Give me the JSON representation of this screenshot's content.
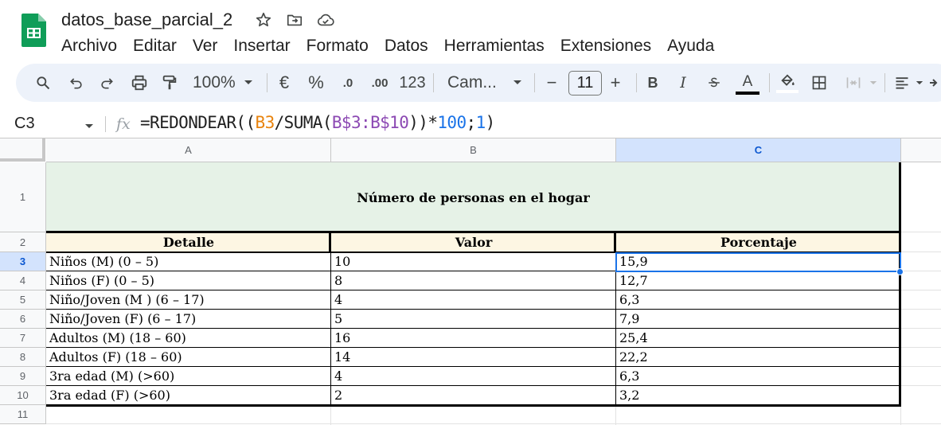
{
  "app": {
    "doc_title": "datos_base_parcial_2",
    "menu": [
      "Archivo",
      "Editar",
      "Ver",
      "Insertar",
      "Formato",
      "Datos",
      "Herramientas",
      "Extensiones",
      "Ayuda"
    ]
  },
  "toolbar": {
    "zoom": "100%",
    "currency": "€",
    "percent": "%",
    "dec_decrease": ".0",
    "dec_increase": ".00",
    "more_formats": "123",
    "font": "Cam...",
    "font_size": "11",
    "minus": "−",
    "plus": "+",
    "bold": "B",
    "italic": "I",
    "text_color": "A"
  },
  "formula_bar": {
    "cell_ref": "C3",
    "fx": "fx",
    "formula_parts": [
      "=REDONDEAR((",
      "B3",
      "/SUMA(",
      "B$3:B$10",
      "))*",
      "100",
      ";",
      "1",
      ")"
    ]
  },
  "grid": {
    "columns": [
      "A",
      "B",
      "C"
    ],
    "rows": [
      "1",
      "2",
      "3",
      "4",
      "5",
      "6",
      "7",
      "8",
      "9",
      "10",
      "11"
    ],
    "selected_cell": "C3",
    "title": "Número de personas en el hogar",
    "headers": [
      "Detalle",
      "Valor",
      "Porcentaje"
    ],
    "data": [
      [
        "Niños (M) (0 – 5)",
        "10",
        "15,9"
      ],
      [
        "Niños (F) (0 – 5)",
        "8",
        "12,7"
      ],
      [
        "Niño/Joven (M ) (6 – 17)",
        "4",
        "6,3"
      ],
      [
        "Niño/Joven (F) (6 – 17)",
        "5",
        "7,9"
      ],
      [
        "Adultos (M) (18 – 60)",
        "16",
        "25,4"
      ],
      [
        "Adultos (F) (18 – 60)",
        "14",
        "22,2"
      ],
      [
        "3ra edad (M) (>60)",
        "4",
        "6,3"
      ],
      [
        "3ra edad (F) (>60)",
        "2",
        "3,2"
      ]
    ]
  },
  "colors": {
    "title_fill": "#e6f2e7",
    "header_fill": "#fdf6e3",
    "selection": "#1a73e8",
    "header_highlight": "#d3e3fd"
  }
}
